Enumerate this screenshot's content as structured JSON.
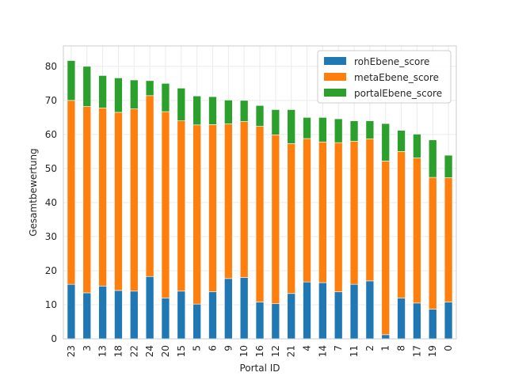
{
  "chart_data": {
    "type": "bar",
    "stacked": true,
    "title": "",
    "xlabel": "Portal ID",
    "ylabel": "Gesamtbewertung",
    "ylim": [
      0,
      86
    ],
    "yticks": [
      0,
      10,
      20,
      30,
      40,
      50,
      60,
      70,
      80
    ],
    "grid": true,
    "legend_position": "top-right",
    "categories": [
      "23",
      "3",
      "13",
      "18",
      "22",
      "24",
      "20",
      "15",
      "5",
      "6",
      "9",
      "10",
      "16",
      "12",
      "21",
      "4",
      "14",
      "7",
      "11",
      "2",
      "1",
      "8",
      "17",
      "19",
      "0"
    ],
    "series": [
      {
        "name": "rohEbene_score",
        "color": "#1f77b4",
        "values": [
          16.0,
          13.5,
          15.5,
          14.2,
          14.0,
          18.3,
          12.0,
          14.0,
          10.2,
          13.8,
          17.7,
          18.0,
          10.8,
          10.3,
          13.3,
          16.7,
          16.5,
          13.8,
          16.0,
          17.0,
          1.2,
          12.0,
          10.5,
          8.7,
          10.8
        ]
      },
      {
        "name": "metaEbene_score",
        "color": "#ff7f0e",
        "values": [
          54.0,
          54.7,
          52.3,
          52.3,
          53.5,
          53.1,
          54.7,
          50.0,
          52.6,
          49.1,
          45.4,
          45.8,
          51.6,
          49.6,
          44.0,
          42.1,
          41.3,
          43.8,
          42.0,
          41.7,
          51.0,
          43.0,
          42.6,
          38.7,
          36.5
        ]
      },
      {
        "name": "portalEbene_score",
        "color": "#2ca02c",
        "values": [
          11.7,
          11.8,
          9.5,
          10.1,
          8.5,
          4.4,
          8.3,
          9.6,
          8.5,
          8.2,
          7.0,
          6.2,
          6.1,
          7.4,
          10.0,
          6.2,
          7.2,
          7.0,
          6.0,
          5.3,
          11.0,
          6.2,
          7.0,
          11.0,
          6.6
        ]
      }
    ]
  }
}
